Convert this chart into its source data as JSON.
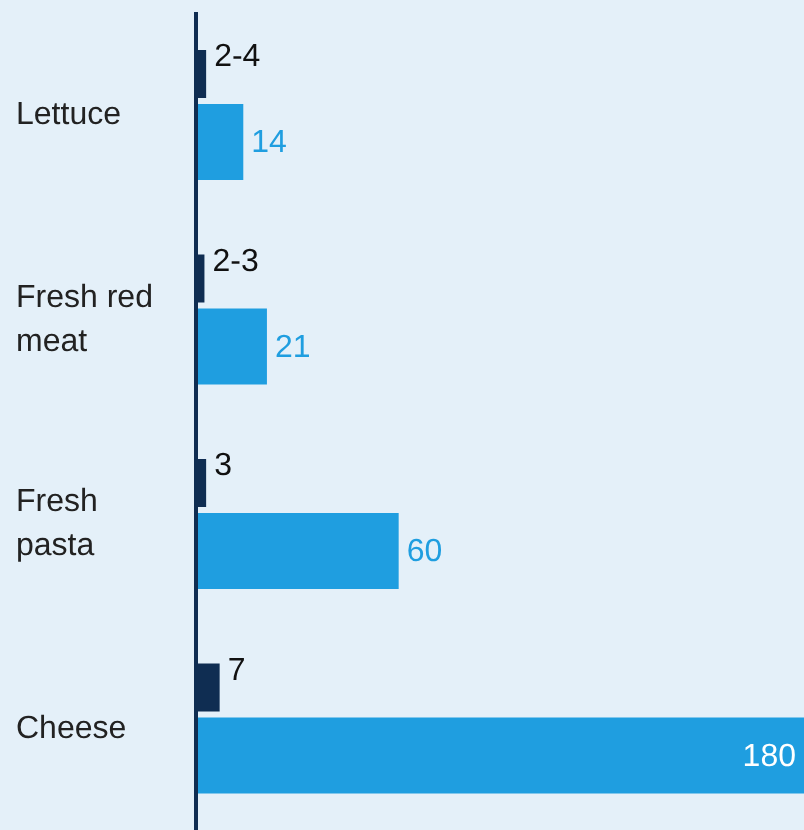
{
  "chart_data": {
    "type": "bar",
    "orientation": "horizontal",
    "categories": [
      "Lettuce",
      "Fresh red meat",
      "Fresh pasta",
      "Cheese"
    ],
    "series": [
      {
        "color": "#0f2d52",
        "values": [
          3,
          2.5,
          3,
          7
        ],
        "value_labels": [
          "2-4",
          "2-3",
          "3",
          "7"
        ]
      },
      {
        "color": "#1f9ee0",
        "values": [
          14,
          21,
          60,
          180
        ],
        "value_labels": [
          "14",
          "21",
          "60",
          "180"
        ]
      }
    ],
    "grid": false,
    "legend": false
  }
}
